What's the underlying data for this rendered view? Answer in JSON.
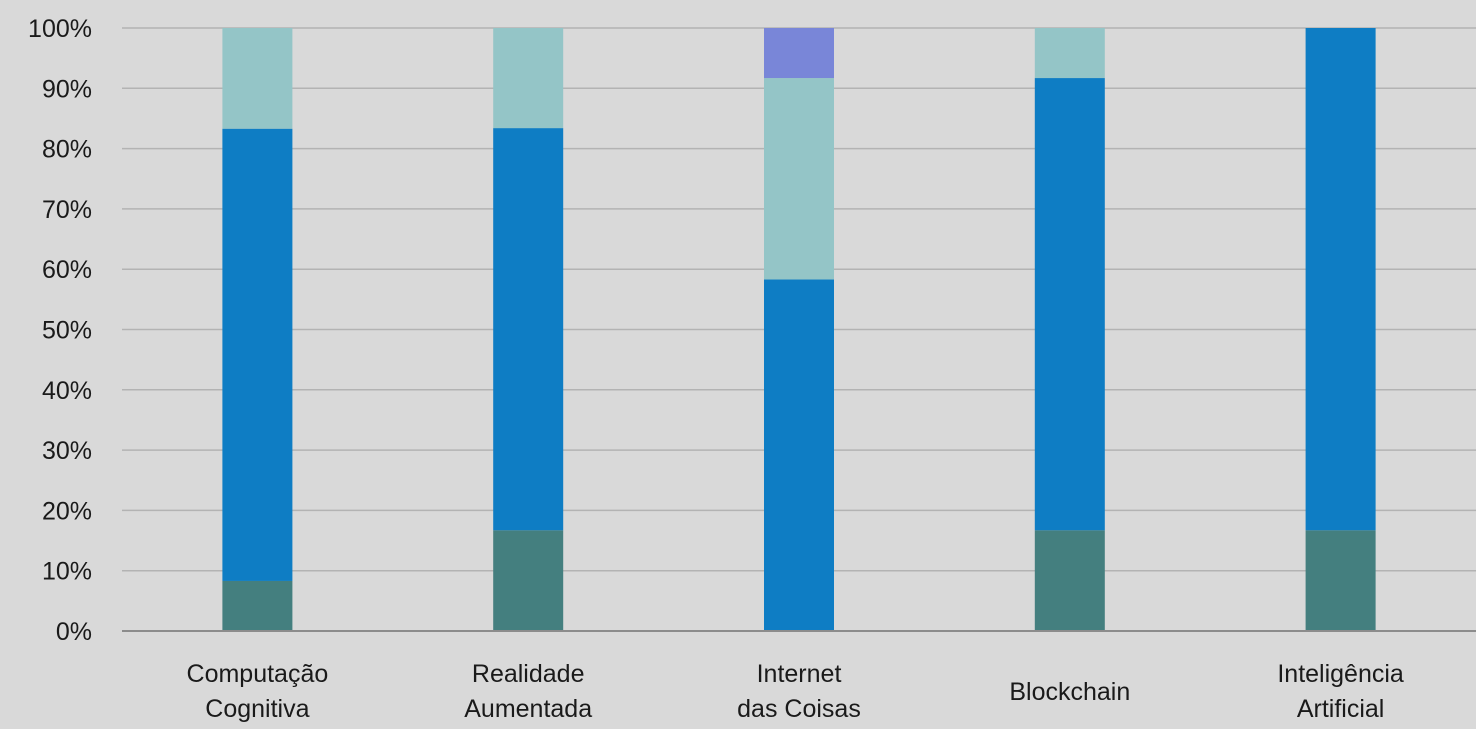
{
  "chart_data": {
    "type": "bar",
    "stacked": true,
    "percent_stacked": true,
    "title": "",
    "xlabel": "",
    "ylabel": "",
    "ylim": [
      0,
      100
    ],
    "legend": "none",
    "grid": true,
    "y_ticks": [
      "0%",
      "10%",
      "20%",
      "30%",
      "40%",
      "50%",
      "60%",
      "70%",
      "80%",
      "90%",
      "100%"
    ],
    "y_tick_values": [
      0,
      10,
      20,
      30,
      40,
      50,
      60,
      70,
      80,
      90,
      100
    ],
    "categories": [
      [
        "Computação",
        "Cognitiva"
      ],
      [
        "Realidade",
        "Aumentada"
      ],
      [
        "Internet",
        "das Coisas"
      ],
      [
        "Blockchain"
      ],
      [
        "Inteligência",
        "Artificial"
      ]
    ],
    "series": [
      {
        "color": "#447f7f",
        "values": [
          8.3,
          16.7,
          0,
          16.7,
          16.7
        ]
      },
      {
        "color": "#0e7dc4",
        "values": [
          75.0,
          66.7,
          58.3,
          75.0,
          83.3
        ]
      },
      {
        "color": "#94c5c7",
        "values": [
          16.7,
          16.6,
          33.4,
          8.3,
          0
        ]
      },
      {
        "color": "#7986d8",
        "values": [
          0,
          0,
          8.3,
          0,
          0
        ]
      }
    ],
    "colors": {
      "background": "#d9d9d9",
      "gridline": "#b3b3b3",
      "axis": "#8c8c8c"
    }
  }
}
